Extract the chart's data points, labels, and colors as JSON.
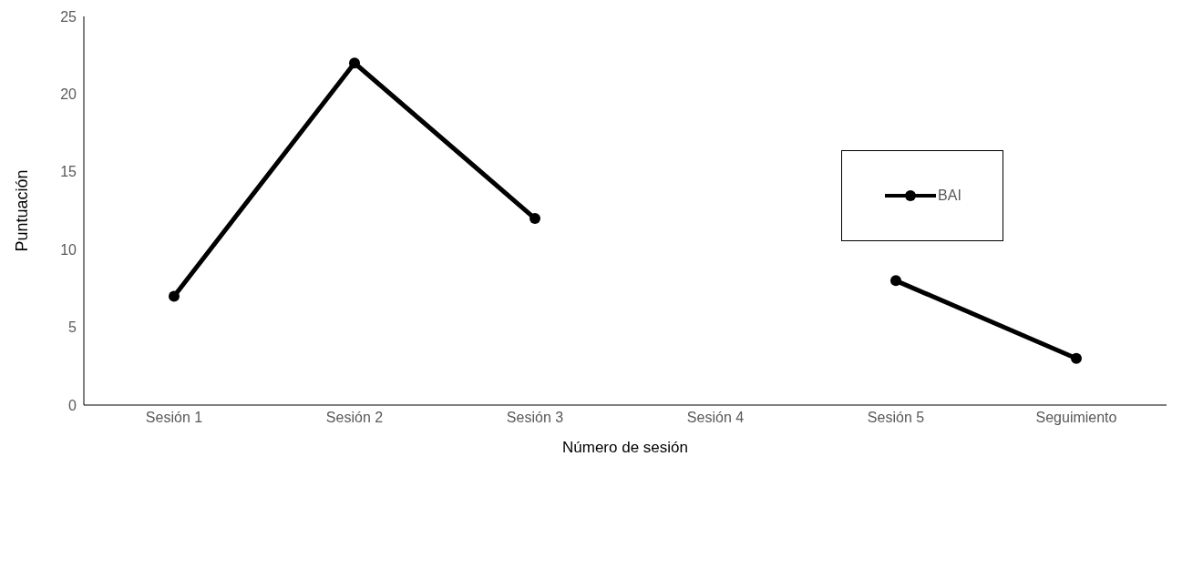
{
  "chart_data": {
    "type": "line",
    "xlabel": "Número de sesión",
    "ylabel": "Puntuación",
    "categories": [
      "Sesión 1",
      "Sesión 2",
      "Sesión 3",
      "Sesión 4",
      "Sesión 5",
      "Seguimiento"
    ],
    "series": [
      {
        "name": "BAI",
        "color": "#000000",
        "values": [
          7,
          22,
          12,
          null,
          8,
          3
        ]
      }
    ],
    "ylim": [
      0,
      25
    ],
    "yticks": [
      0,
      5,
      10,
      15,
      20,
      25
    ],
    "grid": false,
    "legend": "right",
    "marker": "circle",
    "line_style": "solid"
  }
}
